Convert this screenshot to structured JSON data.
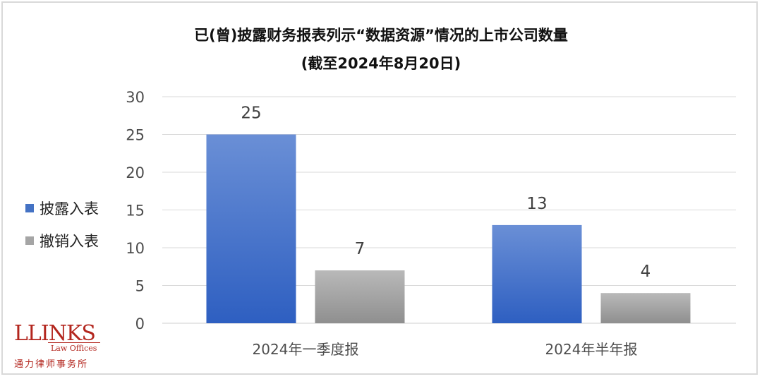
{
  "title_line1": "已(曾)披露财务报表列示“数据资源”情况的上市公司数量",
  "title_line2": "(截至2024年8月20日)",
  "logo": {
    "main": "LLINKS",
    "sub": "Law Offices",
    "cn": "通力律师事务所"
  },
  "chart_data": {
    "type": "bar",
    "categories": [
      "2024年一季度报",
      "2024年半年报"
    ],
    "series": [
      {
        "name": "披露入表",
        "values": [
          25,
          13
        ],
        "color": "#4472c4"
      },
      {
        "name": "撤销入表",
        "values": [
          7,
          4
        ],
        "color": "#a5a5a5"
      }
    ],
    "ylim": [
      0,
      30
    ],
    "yticks": [
      0,
      5,
      10,
      15,
      20,
      25,
      30
    ],
    "grid": true,
    "legend_position": "left"
  }
}
